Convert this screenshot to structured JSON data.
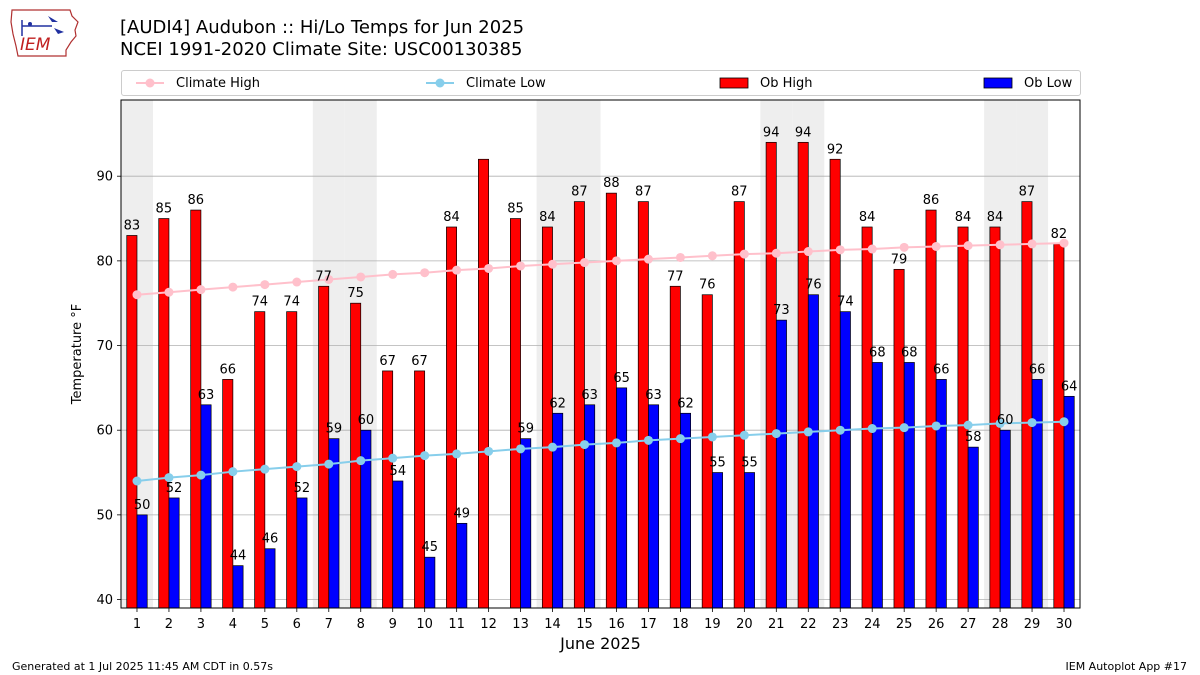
{
  "header": {
    "title": "[AUDI4] Audubon :: Hi/Lo Temps for Jun 2025",
    "subtitle": "NCEI 1991-2020 Climate Site: USC00130385"
  },
  "logo": {
    "text": "IEM",
    "icon": "iem-iowa-logo"
  },
  "legend": {
    "climate_high": "Climate High",
    "climate_low": "Climate Low",
    "ob_high": "Ob High",
    "ob_low": "Ob Low"
  },
  "colors": {
    "ob_high": "#ff0000",
    "ob_low": "#0000ff",
    "climate_high": "#ffc0cb",
    "climate_low": "#87ceeb",
    "weekend_band": "#eeeeee"
  },
  "footer": {
    "generated": "Generated at 1 Jul 2025 11:45 AM CDT in 0.57s",
    "app": "IEM Autoplot App #17"
  },
  "chart_data": {
    "type": "bar",
    "title": "[AUDI4] Audubon :: Hi/Lo Temps for Jun 2025",
    "subtitle": "NCEI 1991-2020 Climate Site: USC00130385",
    "xlabel": "June 2025",
    "ylabel": "Temperature °F",
    "ylim": [
      39,
      99
    ],
    "yticks": [
      40,
      50,
      60,
      70,
      80,
      90
    ],
    "grid": "y",
    "legend_position": "top",
    "categories": [
      "1",
      "2",
      "3",
      "4",
      "5",
      "6",
      "7",
      "8",
      "9",
      "10",
      "11",
      "12",
      "13",
      "14",
      "15",
      "16",
      "17",
      "18",
      "19",
      "20",
      "21",
      "22",
      "23",
      "24",
      "25",
      "26",
      "27",
      "28",
      "29",
      "30"
    ],
    "shaded_days": [
      1,
      7,
      8,
      14,
      15,
      21,
      22,
      28,
      29
    ],
    "series": [
      {
        "name": "Ob High",
        "type": "bar",
        "values": [
          83,
          85,
          86,
          66,
          74,
          74,
          77,
          75,
          67,
          67,
          84,
          92,
          85,
          84,
          87,
          88,
          87,
          77,
          76,
          87,
          94,
          94,
          92,
          84,
          79,
          86,
          84,
          84,
          87,
          82
        ],
        "labels": [
          "83",
          "85",
          "86",
          "66",
          "74",
          "74",
          "77",
          "75",
          "67",
          "67",
          "84",
          "",
          "85",
          "84",
          "87",
          "88",
          "87",
          "77",
          "76",
          "87",
          "94",
          "94",
          "92",
          "84",
          "79",
          "86",
          "84",
          "84",
          "87",
          "82"
        ]
      },
      {
        "name": "Ob Low",
        "type": "bar",
        "values": [
          50,
          52,
          63,
          44,
          46,
          52,
          59,
          60,
          54,
          45,
          49,
          null,
          59,
          62,
          63,
          65,
          63,
          62,
          55,
          55,
          73,
          76,
          74,
          68,
          68,
          66,
          58,
          60,
          66,
          64
        ],
        "labels": [
          "50",
          "52",
          "63",
          "44",
          "46",
          "52",
          "59",
          "60",
          "54",
          "45",
          "49",
          "",
          "59",
          "62",
          "63",
          "65",
          "63",
          "62",
          "55",
          "55",
          "73",
          "76",
          "74",
          "68",
          "68",
          "66",
          "58",
          "60",
          "66",
          "64"
        ]
      },
      {
        "name": "Climate High",
        "type": "line",
        "values": [
          76.0,
          76.3,
          76.6,
          76.9,
          77.2,
          77.5,
          77.8,
          78.1,
          78.4,
          78.6,
          78.9,
          79.1,
          79.4,
          79.6,
          79.8,
          80.0,
          80.2,
          80.4,
          80.6,
          80.8,
          80.9,
          81.1,
          81.3,
          81.4,
          81.6,
          81.7,
          81.8,
          81.9,
          82.0,
          82.1
        ]
      },
      {
        "name": "Climate Low",
        "type": "line",
        "values": [
          54.0,
          54.4,
          54.7,
          55.1,
          55.4,
          55.7,
          56.0,
          56.4,
          56.7,
          57.0,
          57.2,
          57.5,
          57.8,
          58.0,
          58.3,
          58.5,
          58.8,
          59.0,
          59.2,
          59.4,
          59.6,
          59.8,
          60.0,
          60.2,
          60.3,
          60.5,
          60.6,
          60.8,
          60.9,
          61.0
        ]
      }
    ]
  }
}
